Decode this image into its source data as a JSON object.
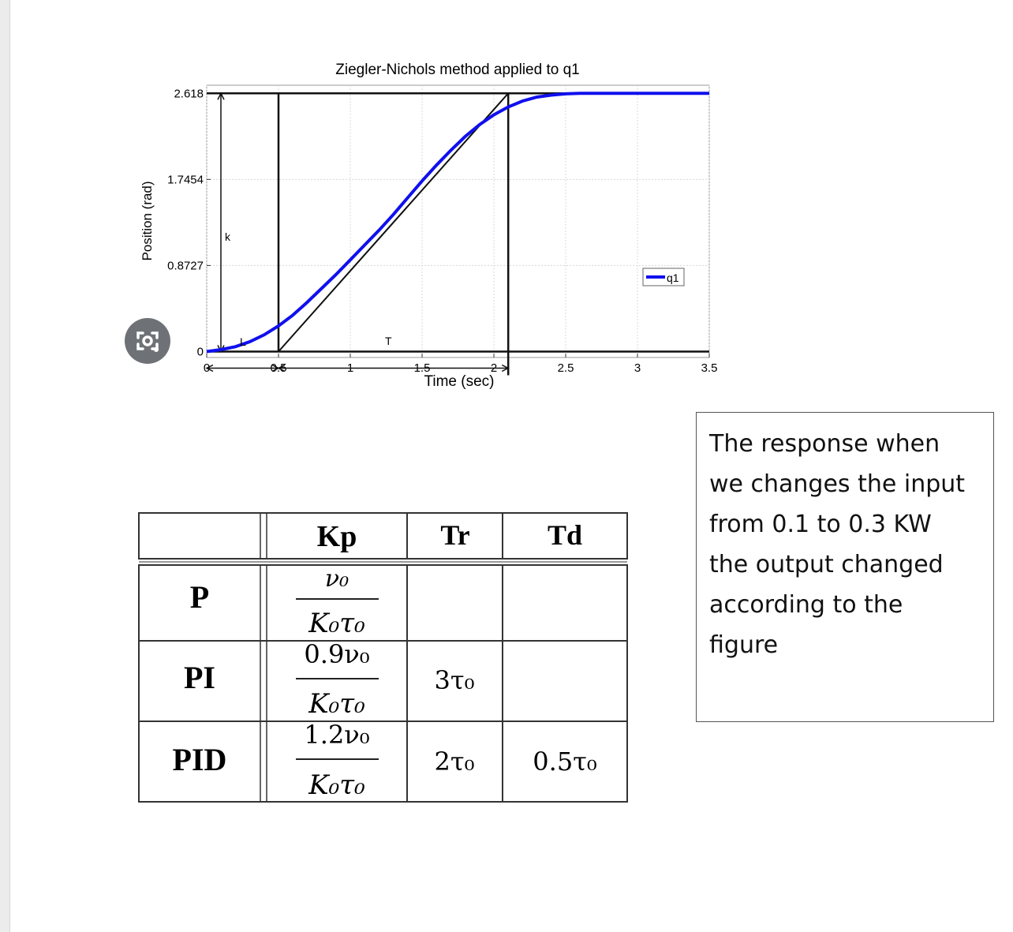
{
  "chart_data": {
    "type": "line",
    "title": "Ziegler-Nichols method applied to q1",
    "xlabel": "Time (sec)",
    "ylabel": "Position (rad)",
    "xlim": [
      0,
      3.5
    ],
    "ylim": [
      -0.06,
      2.7
    ],
    "x_ticks": [
      "0",
      "0.5",
      "1",
      "1.5",
      "2",
      "2.5",
      "3",
      "3.5"
    ],
    "x_tick_values": [
      0,
      0.5,
      1,
      1.5,
      2,
      2.5,
      3,
      3.5
    ],
    "y_ticks": [
      "0",
      "0.8727",
      "1.7454",
      "2.618"
    ],
    "y_tick_values": [
      0,
      0.8727,
      1.7454,
      2.618
    ],
    "grid": true,
    "legend_position": "right",
    "series": [
      {
        "name": "q1",
        "color": "#1010ee",
        "x": [
          0,
          0.1,
          0.2,
          0.3,
          0.4,
          0.5,
          0.6,
          0.7,
          0.8,
          0.9,
          1.0,
          1.1,
          1.2,
          1.3,
          1.4,
          1.5,
          1.6,
          1.7,
          1.8,
          1.9,
          2.0,
          2.1,
          2.2,
          2.3,
          2.4,
          2.5,
          2.6,
          2.7,
          2.8,
          3.0,
          3.2,
          3.5
        ],
        "y": [
          0,
          0.02,
          0.05,
          0.1,
          0.17,
          0.26,
          0.37,
          0.5,
          0.64,
          0.78,
          0.93,
          1.08,
          1.23,
          1.39,
          1.56,
          1.73,
          1.89,
          2.04,
          2.18,
          2.3,
          2.4,
          2.48,
          2.54,
          2.58,
          2.6,
          2.613,
          2.618,
          2.618,
          2.618,
          2.618,
          2.618,
          2.618
        ]
      }
    ],
    "annotations": {
      "k_label": "k",
      "L_label": "L",
      "T_label": "T",
      "L_value": 0.5,
      "T_end": 2.1,
      "k_value": 2.618
    }
  },
  "table": {
    "headers": [
      "",
      "Kp",
      "Tr",
      "Td"
    ],
    "rows": [
      {
        "label": "P",
        "kp_num": "ν₀",
        "kp_den": "K₀τ₀",
        "tr": "",
        "td": ""
      },
      {
        "label": "PI",
        "kp_num": "0.9ν₀",
        "kp_den": "K₀τ₀",
        "tr": "3τ₀",
        "td": ""
      },
      {
        "label": "PID",
        "kp_num": "1.2ν₀",
        "kp_den": "K₀τ₀",
        "tr": "2τ₀",
        "td": "0.5τ₀"
      }
    ]
  },
  "note": {
    "lines": [
      "The response when",
      "we changes the input",
      "from 0.1  to  0.3 KW",
      "the output changed",
      "according to the",
      "figure"
    ]
  },
  "colors": {
    "curve": "#1010ee",
    "lines": "#111111"
  }
}
